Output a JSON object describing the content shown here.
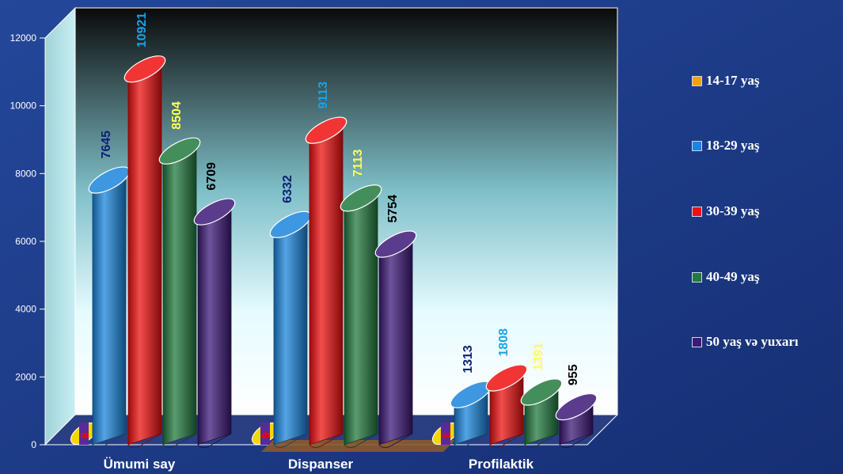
{
  "chart_data": {
    "type": "bar",
    "title": "",
    "xlabel": "",
    "ylabel": "",
    "ylim": [
      0,
      12000
    ],
    "yticks": [
      0,
      2000,
      4000,
      6000,
      8000,
      10000,
      12000
    ],
    "grid": false,
    "legend_position": "right",
    "categories": [
      "Ümumi say",
      "Dispanser",
      "Profilaktik"
    ],
    "series": [
      {
        "name": "14-17 yaş",
        "color": "#f5a300",
        "label_color": "#ff0000",
        "values": [
          9,
          6,
          3
        ]
      },
      {
        "name": "18-29 yaş",
        "color": "#1b86dc",
        "label_color": "#0a1f78",
        "values": [
          7645,
          6332,
          1313
        ]
      },
      {
        "name": "30-39 yaş",
        "color": "#ee1111",
        "label_color": "#19a3e8",
        "values": [
          10921,
          9113,
          1808
        ]
      },
      {
        "name": "40-49 yaş",
        "color": "#237a3f",
        "label_color": "#ffff55",
        "values": [
          8504,
          7113,
          1391
        ]
      },
      {
        "name": "50 yaş və yuxarı",
        "color": "#3e1a78",
        "label_color": "#000000",
        "values": [
          6709,
          5754,
          955
        ]
      }
    ]
  }
}
